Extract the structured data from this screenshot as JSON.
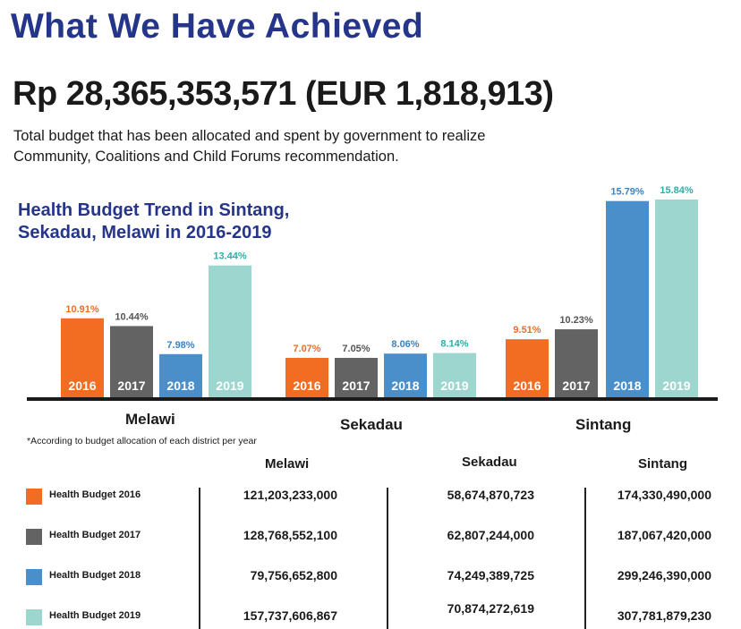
{
  "title": "What We Have Achieved",
  "amount": "Rp 28,365,353,571 (EUR 1,818,913)",
  "description": "Total budget that has been allocated and spent by government to realize Community, Coalitions and Child Forums recommendation.",
  "note": "*According to budget allocation of each district per year",
  "chart_data": {
    "type": "bar",
    "title_line1": "Health Budget Trend in Sintang,",
    "title_line2": "Sekadau, Melawi in 2016-2019",
    "categories": [
      "Melawi",
      "Sekadau",
      "Sintang"
    ],
    "series": [
      {
        "name": "2016",
        "color": "#f26c21",
        "values": [
          10.91,
          7.07,
          9.51
        ],
        "labels": [
          "10.91%",
          "7.07%",
          "9.51%"
        ]
      },
      {
        "name": "2017",
        "color": "#636363",
        "values": [
          10.44,
          7.05,
          10.23
        ],
        "labels": [
          "10.44%",
          "7.05%",
          "10.23%"
        ]
      },
      {
        "name": "2018",
        "color": "#4a8fca",
        "values": [
          7.98,
          8.06,
          15.79
        ],
        "labels": [
          "7.98%",
          "8.06%",
          "15.79%"
        ]
      },
      {
        "name": "2019",
        "color": "#9dd5cf",
        "values": [
          13.44,
          8.14,
          15.84
        ],
        "labels": [
          "13.44%",
          "8.14%",
          "15.84%"
        ]
      }
    ],
    "label_colors": [
      "#f26c21",
      "#555555",
      "#3a82c4",
      "#2ab0a6"
    ]
  },
  "table": {
    "headers": [
      "Melawi",
      "Sekadau",
      "Sintang"
    ],
    "rows": [
      {
        "label": "Health Budget 2016",
        "color": "#f26c21",
        "values": [
          "121,203,233,000",
          "58,674,870,723",
          "174,330,490,000"
        ]
      },
      {
        "label": "Health Budget 2017",
        "color": "#636363",
        "values": [
          "128,768,552,100",
          "62,807,244,000",
          "187,067,420,000"
        ]
      },
      {
        "label": "Health Budget 2018",
        "color": "#4a8fca",
        "values": [
          "79,756,652,800",
          "74,249,389,725",
          "299,246,390,000"
        ]
      },
      {
        "label": "Health Budget 2019",
        "color": "#9dd5cf",
        "values": [
          "157,737,606,867",
          "70,874,272,619",
          "307,781,879,230"
        ]
      }
    ]
  }
}
